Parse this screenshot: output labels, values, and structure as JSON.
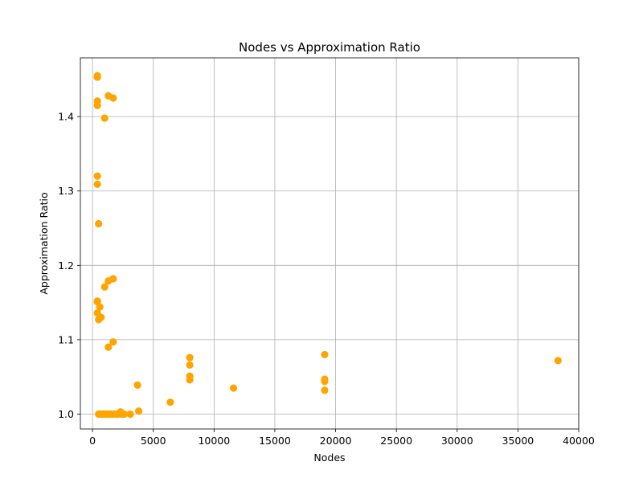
{
  "chart_data": {
    "type": "scatter",
    "title": "Nodes vs Approximation Ratio",
    "xlabel": "Nodes",
    "ylabel": "Approximation Ratio",
    "xlim": [
      -1000,
      40000
    ],
    "ylim": [
      0.98,
      1.479
    ],
    "xticks": [
      0,
      5000,
      10000,
      15000,
      20000,
      25000,
      30000,
      35000,
      40000
    ],
    "xtick_labels": [
      "0",
      "5000",
      "10000",
      "15000",
      "20000",
      "25000",
      "30000",
      "35000",
      "40000"
    ],
    "yticks": [
      1.0,
      1.1,
      1.2,
      1.3,
      1.4
    ],
    "ytick_labels": [
      "1.0",
      "1.1",
      "1.2",
      "1.3",
      "1.4"
    ],
    "grid": true,
    "marker_color": "#ffa500",
    "series": [
      {
        "x": [
          400,
          400,
          400,
          400,
          400,
          400,
          400,
          400,
          400,
          1000,
          1300,
          1700,
          1700,
          500,
          1000,
          1300,
          600,
          700,
          500,
          1300,
          1700,
          500,
          600,
          700,
          800,
          900,
          1000,
          1200,
          1300,
          1500,
          1700,
          1900,
          2100,
          2300,
          2400,
          2500,
          2600,
          3100,
          3700,
          3800,
          6400,
          8000,
          8000,
          8000,
          8000,
          11600,
          19100,
          19100,
          19100,
          19100,
          38300
        ],
        "y": [
          1.455,
          1.453,
          1.421,
          1.415,
          1.32,
          1.309,
          1.152,
          1.151,
          1.136,
          1.398,
          1.428,
          1.425,
          1.182,
          1.256,
          1.171,
          1.179,
          1.144,
          1.13,
          1.127,
          1.09,
          1.097,
          1.0,
          1.0,
          1.0,
          1.0,
          1.0,
          1.0,
          1.0,
          1.0,
          1.0,
          1.0,
          1.0,
          1.0,
          1.003,
          1.0,
          1.0,
          1.0,
          1.0,
          1.039,
          1.004,
          1.016,
          1.076,
          1.066,
          1.051,
          1.046,
          1.035,
          1.08,
          1.047,
          1.044,
          1.032,
          1.072
        ]
      }
    ]
  }
}
